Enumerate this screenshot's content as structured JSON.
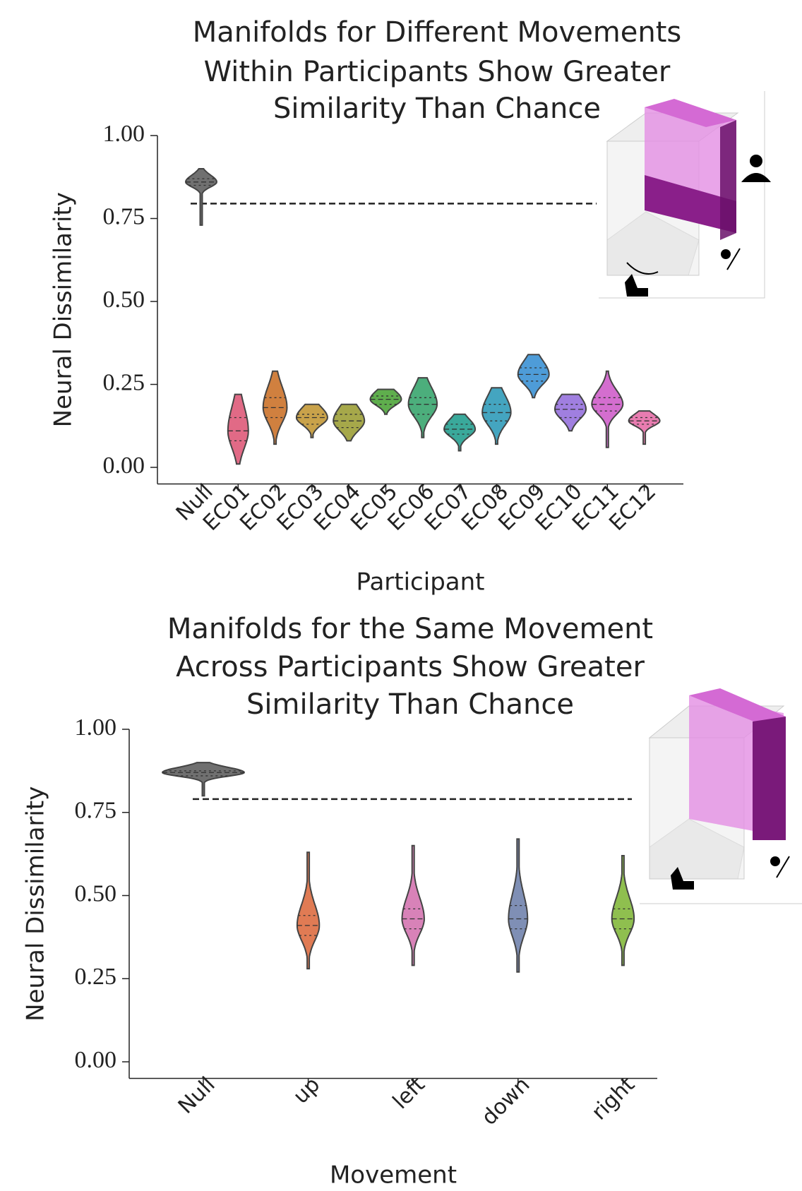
{
  "chart_data": [
    {
      "type": "violin",
      "title": [
        "Manifolds for Different Movements",
        "Within Participants Show Greater",
        "Similarity Than Chance"
      ],
      "x_label": "Participant",
      "y_label": "Neural Dissimilarity",
      "categories": [
        "Null",
        "EC01",
        "EC02",
        "EC03",
        "EC04",
        "EC05",
        "EC06",
        "EC07",
        "EC08",
        "EC09",
        "EC10",
        "EC11",
        "EC12"
      ],
      "min": [
        0.73,
        0.01,
        0.07,
        0.09,
        0.08,
        0.16,
        0.09,
        0.05,
        0.07,
        0.21,
        0.11,
        0.06,
        0.07
      ],
      "q1": [
        0.85,
        0.08,
        0.15,
        0.13,
        0.12,
        0.19,
        0.16,
        0.1,
        0.14,
        0.26,
        0.15,
        0.17,
        0.13
      ],
      "median": [
        0.86,
        0.11,
        0.18,
        0.15,
        0.14,
        0.205,
        0.19,
        0.115,
        0.165,
        0.28,
        0.175,
        0.19,
        0.14
      ],
      "q3": [
        0.87,
        0.15,
        0.21,
        0.16,
        0.16,
        0.215,
        0.21,
        0.13,
        0.19,
        0.3,
        0.19,
        0.21,
        0.15
      ],
      "max": [
        0.9,
        0.22,
        0.29,
        0.19,
        0.19,
        0.235,
        0.27,
        0.16,
        0.24,
        0.34,
        0.22,
        0.29,
        0.17
      ],
      "colors": [
        "#707070",
        "#e16a86",
        "#d0803f",
        "#c9a24a",
        "#a6a84a",
        "#5fae4d",
        "#4cae7c",
        "#3aa99b",
        "#44a5c0",
        "#4e9cd8",
        "#a07fe0",
        "#d46ecf",
        "#e87cb0"
      ],
      "reference_line": 0.795,
      "ylim": [
        -0.05,
        1.0
      ],
      "yticks": [
        {
          "value": 0,
          "label": "0.00"
        },
        {
          "value": 0.25,
          "label": "0.25"
        },
        {
          "value": 0.5,
          "label": "0.50"
        },
        {
          "value": 0.75,
          "label": "0.75"
        },
        {
          "value": 1,
          "label": "1.00"
        }
      ]
    },
    {
      "type": "violin",
      "title": [
        "Manifolds for the Same Movement",
        "Across Participants Show Greater",
        "Similarity Than Chance"
      ],
      "x_label": "Movement",
      "y_label": "Neural Dissimilarity",
      "categories": [
        "Null",
        "up",
        "left",
        "down",
        "right"
      ],
      "min": [
        0.8,
        0.28,
        0.29,
        0.27,
        0.29
      ],
      "q1": [
        0.86,
        0.38,
        0.4,
        0.4,
        0.4
      ],
      "median": [
        0.87,
        0.41,
        0.43,
        0.43,
        0.43
      ],
      "q3": [
        0.875,
        0.44,
        0.46,
        0.47,
        0.46
      ],
      "max": [
        0.9,
        0.63,
        0.65,
        0.67,
        0.62
      ],
      "colors": [
        "#707070",
        "#e07b54",
        "#d882b8",
        "#7f8fb5",
        "#8fbf4f"
      ],
      "reference_line": 0.79,
      "ylim": [
        -0.05,
        1.0
      ],
      "yticks": [
        {
          "value": 0,
          "label": "0.00"
        },
        {
          "value": 0.25,
          "label": "0.25"
        },
        {
          "value": 0.5,
          "label": "0.50"
        },
        {
          "value": 0.75,
          "label": "0.75"
        },
        {
          "value": 1,
          "label": "1.00"
        }
      ]
    }
  ]
}
